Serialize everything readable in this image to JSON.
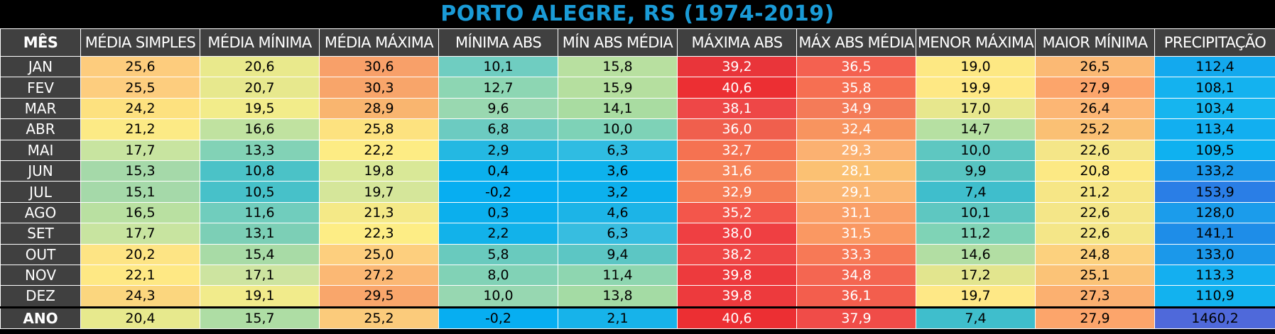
{
  "title": "PORTO ALEGRE, RS (1974-2019)",
  "chart_data": {
    "type": "table",
    "title": "PORTO ALEGRE, RS (1974-2019)",
    "columns": [
      "MÊS",
      "MÉDIA SIMPLES",
      "MÉDIA MÍNIMA",
      "MÉDIA MÁXIMA",
      "MÍNIMA ABS",
      "MÍN ABS MÉDIA",
      "MÁXIMA ABS",
      "MÁX ABS MÉDIA",
      "MENOR MÁXIMA",
      "MAIOR MÍNIMA",
      "PRECIPITAÇÃO"
    ],
    "rows": [
      {
        "label": "JAN",
        "values": [
          "25,6",
          "20,6",
          "30,6",
          "10,1",
          "15,8",
          "39,2",
          "36,5",
          "19,0",
          "26,5",
          "112,4"
        ]
      },
      {
        "label": "FEV",
        "values": [
          "25,5",
          "20,7",
          "30,3",
          "12,7",
          "15,9",
          "40,6",
          "35,8",
          "19,9",
          "27,9",
          "108,1"
        ]
      },
      {
        "label": "MAR",
        "values": [
          "24,2",
          "19,5",
          "28,9",
          "9,6",
          "14,1",
          "38,1",
          "34,9",
          "17,0",
          "26,4",
          "103,4"
        ]
      },
      {
        "label": "ABR",
        "values": [
          "21,2",
          "16,6",
          "25,8",
          "6,8",
          "10,0",
          "36,0",
          "32,4",
          "14,7",
          "25,2",
          "113,4"
        ]
      },
      {
        "label": "MAI",
        "values": [
          "17,7",
          "13,3",
          "22,2",
          "2,9",
          "6,3",
          "32,7",
          "29,3",
          "10,0",
          "22,6",
          "109,5"
        ]
      },
      {
        "label": "JUN",
        "values": [
          "15,3",
          "10,8",
          "19,8",
          "0,4",
          "3,6",
          "31,6",
          "28,1",
          "9,9",
          "20,8",
          "133,2"
        ]
      },
      {
        "label": "JUL",
        "values": [
          "15,1",
          "10,5",
          "19,7",
          "-0,2",
          "3,2",
          "32,9",
          "29,1",
          "7,4",
          "21,2",
          "153,9"
        ]
      },
      {
        "label": "AGO",
        "values": [
          "16,5",
          "11,6",
          "21,3",
          "0,3",
          "4,6",
          "35,2",
          "31,1",
          "10,1",
          "22,6",
          "128,0"
        ]
      },
      {
        "label": "SET",
        "values": [
          "17,7",
          "13,1",
          "22,3",
          "2,2",
          "6,3",
          "38,0",
          "31,5",
          "11,2",
          "22,6",
          "141,1"
        ]
      },
      {
        "label": "OUT",
        "values": [
          "20,2",
          "15,4",
          "25,0",
          "5,8",
          "9,4",
          "38,2",
          "33,3",
          "14,6",
          "24,8",
          "133,0"
        ]
      },
      {
        "label": "NOV",
        "values": [
          "22,1",
          "17,1",
          "27,2",
          "8,0",
          "11,4",
          "39,8",
          "34,8",
          "17,2",
          "25,1",
          "113,3"
        ]
      },
      {
        "label": "DEZ",
        "values": [
          "24,3",
          "19,1",
          "29,5",
          "10,0",
          "13,8",
          "39,8",
          "36,1",
          "19,7",
          "27,3",
          "110,9"
        ]
      },
      {
        "label": "ANO",
        "values": [
          "20,4",
          "15,7",
          "25,2",
          "-0,2",
          "2,1",
          "40,6",
          "37,9",
          "7,4",
          "27,9",
          "1460,2"
        ]
      }
    ],
    "cell_colors": [
      [
        "#fdcc7d",
        "#e9e98c",
        "#f8a069",
        "#6fcdc1",
        "#b8e0a0",
        "#e9353a",
        "#f46150",
        "#fde883",
        "#fbb974",
        "#13a9ee"
      ],
      [
        "#fdcd7e",
        "#e7e88d",
        "#f8a56a",
        "#8dd6b3",
        "#b5df9f",
        "#ec2f33",
        "#f66f52",
        "#fee884",
        "#fca56b",
        "#14b2ef"
      ],
      [
        "#fde17f",
        "#f2ec8a",
        "#f9b56f",
        "#99d8b0",
        "#a9dca1",
        "#ee4747",
        "#f47b58",
        "#e7e78d",
        "#fcb674",
        "#16b5ef"
      ],
      [
        "#fcea85",
        "#c0e2a0",
        "#fde27f",
        "#6ccbc1",
        "#7ed2b7",
        "#f05f4d",
        "#f8945f",
        "#b6e0a2",
        "#fac074",
        "#12aff0"
      ],
      [
        "#c8e4a0",
        "#82d2b6",
        "#fdec84",
        "#24b8e2",
        "#2fbce2",
        "#f57251",
        "#fbb171",
        "#5ec7c1",
        "#f4e688",
        "#0fb1f0"
      ],
      [
        "#a5d9a9",
        "#4bc2c7",
        "#d9e897",
        "#0bb0ed",
        "#0db2ed",
        "#f7855a",
        "#fbc173",
        "#57c4c1",
        "#fce984",
        "#1b97ea"
      ],
      [
        "#a5d9a9",
        "#47c1c9",
        "#d5e69a",
        "#07aef1",
        "#0cb0ed",
        "#f67c55",
        "#fbb672",
        "#3fbecc",
        "#f6e686",
        "#2a7ee6"
      ],
      [
        "#b9e0a1",
        "#70cdbd",
        "#f4e987",
        "#0bafed",
        "#1cb4e7",
        "#f3564b",
        "#fa9f67",
        "#5ec7c1",
        "#f4e688",
        "#1b9ceb"
      ],
      [
        "#c8e4a0",
        "#7ccfb6",
        "#fded85",
        "#12b2ea",
        "#37bde0",
        "#ef3f42",
        "#fa9862",
        "#7fd3b6",
        "#f4e688",
        "#1e8de8"
      ],
      [
        "#fde484",
        "#a8dba6",
        "#fdcf7e",
        "#69cabe",
        "#5cc6c4",
        "#ef4645",
        "#f77956",
        "#b2dea3",
        "#fcd17e",
        "#1b98ea"
      ],
      [
        "#fee884",
        "#cde4a0",
        "#fbb874",
        "#81d2b6",
        "#8ed6b0",
        "#ed3a3d",
        "#f46651",
        "#e2e58e",
        "#fbc377",
        "#14aff0"
      ],
      [
        "#fbd67e",
        "#f1eb8b",
        "#f9a66b",
        "#97d7b1",
        "#a4dba4",
        "#ed3a3d",
        "#f35e4d",
        "#fee886",
        "#fbb070",
        "#12b2ef"
      ],
      [
        "#e7e98d",
        "#aedda4",
        "#fbcb7b",
        "#07aef1",
        "#17b3ea",
        "#ec2f33",
        "#f04c48",
        "#3fbecc",
        "#fca56b",
        "#4f69da"
      ]
    ],
    "white_text_columns": [
      "MÁXIMA ABS",
      "MÁX ABS MÉDIA"
    ]
  }
}
